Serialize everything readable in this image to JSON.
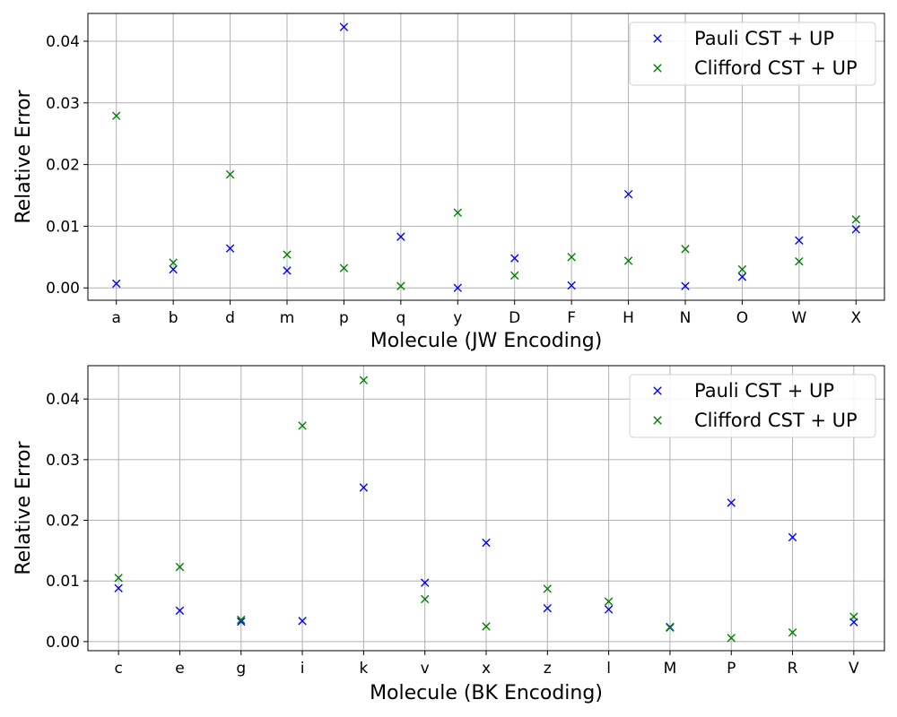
{
  "chart_data": [
    {
      "type": "scatter",
      "xlabel": "Molecule (JW Encoding)",
      "ylabel": "Relative Error",
      "categories": [
        "a",
        "b",
        "d",
        "m",
        "p",
        "q",
        "y",
        "D",
        "F",
        "H",
        "N",
        "O",
        "W",
        "X"
      ],
      "ylim": [
        -0.002,
        0.0445
      ],
      "yticks": [
        0.0,
        0.01,
        0.02,
        0.03,
        0.04
      ],
      "ytick_labels": [
        "0.00",
        "0.01",
        "0.02",
        "0.03",
        "0.04"
      ],
      "grid": true,
      "legend_position": "top-right",
      "marker": "x",
      "series": [
        {
          "name": "Pauli CST + UP",
          "color": "#0000ff",
          "values": [
            0.0007,
            0.003,
            0.0064,
            0.0028,
            0.0423,
            0.0083,
            0.0,
            0.0048,
            0.0004,
            0.0152,
            0.0003,
            0.0018,
            0.0077,
            0.0095
          ]
        },
        {
          "name": "Clifford CST + UP",
          "color": "#008000",
          "values": [
            0.0279,
            0.0041,
            0.0184,
            0.0054,
            0.0032,
            0.0003,
            0.0122,
            0.002,
            0.005,
            0.0044,
            0.0063,
            0.003,
            0.0043,
            0.0111
          ]
        }
      ]
    },
    {
      "type": "scatter",
      "xlabel": "Molecule (BK Encoding)",
      "ylabel": "Relative Error",
      "categories": [
        "c",
        "e",
        "g",
        "i",
        "k",
        "v",
        "x",
        "z",
        "l",
        "M",
        "P",
        "R",
        "V"
      ],
      "ylim": [
        -0.0015,
        0.0455
      ],
      "yticks": [
        0.0,
        0.01,
        0.02,
        0.03,
        0.04
      ],
      "ytick_labels": [
        "0.00",
        "0.01",
        "0.02",
        "0.03",
        "0.04"
      ],
      "grid": true,
      "legend_position": "top-right",
      "marker": "x",
      "series": [
        {
          "name": "Pauli CST + UP",
          "color": "#0000ff",
          "values": [
            0.0088,
            0.0051,
            0.0033,
            0.0034,
            0.0254,
            0.0097,
            0.0163,
            0.0055,
            0.0053,
            0.0024,
            0.0229,
            0.0172,
            0.0032
          ]
        },
        {
          "name": "Clifford CST + UP",
          "color": "#008000",
          "values": [
            0.0105,
            0.0123,
            0.0036,
            0.0356,
            0.0431,
            0.007,
            0.0025,
            0.0087,
            0.0066,
            0.0023,
            0.0006,
            0.0015,
            0.0041
          ]
        }
      ]
    }
  ]
}
